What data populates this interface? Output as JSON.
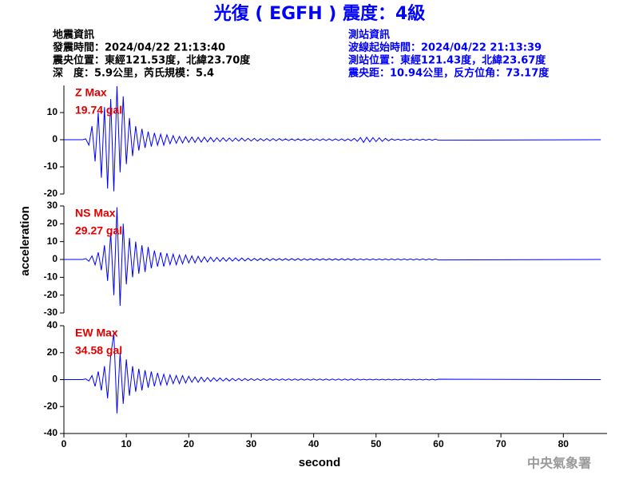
{
  "title": "光復 ( EGFH ) 震度：4級",
  "info_left": [
    "地震資訊",
    "發震時間：2024/04/22 21:13:40",
    "震央位置：東經121.53度，北緯23.70度",
    "深　度：5.9公里，芮氏規模：5.4"
  ],
  "info_right": [
    "測站資訊",
    "波線起始時間：2024/04/22 21:13:39",
    "測站位置：東經121.43度，北緯23.67度",
    "震央距：10.94公里，反方位角：73.17度"
  ],
  "y_label": "acceleration",
  "x_label": "second",
  "footer": "中央氣象署",
  "chart_data": [
    {
      "type": "line",
      "color": "#0000ff",
      "annotations": [
        "Z Max",
        "19.74 gal"
      ],
      "xlim": [
        0,
        87
      ],
      "ylim": [
        -20,
        20
      ],
      "yticks": [
        -20,
        -10,
        0,
        10
      ],
      "x": [
        0,
        3,
        3.5,
        4,
        4.5,
        5,
        5.5,
        6,
        6.5,
        7,
        7.5,
        8,
        8.5,
        9,
        9.5,
        10,
        10.5,
        11,
        11.5,
        12,
        12.5,
        13,
        13.5,
        14,
        14.5,
        15,
        15.5,
        16,
        16.5,
        17,
        17.5,
        18,
        18.5,
        19,
        19.5,
        20,
        20.5,
        21,
        21.5,
        22,
        22.5,
        23,
        23.5,
        24,
        24.5,
        25,
        25.5,
        26,
        26.5,
        27,
        27.5,
        28,
        28.5,
        29,
        29.5,
        30,
        30.5,
        31,
        31.5,
        32,
        32.5,
        33,
        33.5,
        34,
        34.5,
        35,
        35.5,
        36,
        36.5,
        37,
        37.5,
        38,
        38.5,
        39,
        39.5,
        40,
        40.5,
        41,
        41.5,
        42,
        42.5,
        43,
        43.5,
        44,
        44.5,
        45,
        45.5,
        46,
        46.5,
        47,
        47.5,
        48,
        48.5,
        49,
        49.5,
        50,
        50.5,
        51,
        51.5,
        52,
        52.5,
        53,
        53.5,
        54,
        54.5,
        55,
        55.5,
        56,
        56.5,
        57,
        57.5,
        58,
        58.5,
        59,
        59.5,
        60,
        86
      ],
      "values": [
        0,
        0,
        0.3,
        -2,
        5,
        -8,
        10,
        -14,
        12,
        -18,
        15,
        -19,
        19.74,
        -12,
        16,
        -9,
        8,
        -6,
        5,
        -4,
        4,
        -3,
        3,
        -2.5,
        2.5,
        -2,
        2,
        -2,
        1.8,
        -1.5,
        1.5,
        -1.3,
        1.2,
        -1.2,
        1.1,
        -1,
        1,
        -1,
        0.9,
        -0.9,
        0.9,
        -0.8,
        0.8,
        -0.8,
        0.7,
        -0.7,
        0.7,
        -0.6,
        0.6,
        -0.6,
        0.6,
        -0.5,
        0.6,
        -0.5,
        0.5,
        -0.5,
        0.5,
        -0.5,
        0.4,
        -0.4,
        0.4,
        -0.4,
        0.4,
        -0.4,
        0.4,
        -0.3,
        0.3,
        -0.3,
        0.3,
        -0.3,
        0.3,
        -0.3,
        0.3,
        -0.3,
        0.3,
        -0.3,
        0.3,
        -0.3,
        0.3,
        -0.3,
        0.3,
        -0.3,
        0.3,
        -0.3,
        0.3,
        -0.4,
        0.3,
        -0.4,
        0.5,
        -0.6,
        0.8,
        -1,
        0.9,
        -0.8,
        0.8,
        -0.7,
        0.7,
        -0.6,
        0.5,
        -0.4,
        0.3,
        -0.2,
        0.2,
        -0.2,
        0.2,
        -0.2,
        0.2,
        -0.2,
        0.2,
        -0.2,
        0.2,
        -0.2,
        0.2,
        -0.2,
        0.2,
        -0.2,
        0
      ]
    },
    {
      "type": "line",
      "color": "#0000ff",
      "annotations": [
        "NS Max",
        "29.27 gal"
      ],
      "xlim": [
        0,
        87
      ],
      "ylim": [
        -30,
        30
      ],
      "yticks": [
        -30,
        -20,
        -10,
        0,
        10,
        20,
        30
      ],
      "x": [
        0,
        3,
        3.5,
        4,
        4.5,
        5,
        5.5,
        6,
        6.5,
        7,
        7.5,
        8,
        8.5,
        9,
        9.5,
        10,
        10.5,
        11,
        11.5,
        12,
        12.5,
        13,
        13.5,
        14,
        14.5,
        15,
        15.5,
        16,
        16.5,
        17,
        17.5,
        18,
        18.5,
        19,
        19.5,
        20,
        20.5,
        21,
        21.5,
        22,
        22.5,
        23,
        23.5,
        24,
        24.5,
        25,
        25.5,
        26,
        26.5,
        27,
        27.5,
        28,
        28.5,
        29,
        29.5,
        30,
        30.5,
        31,
        31.5,
        32,
        32.5,
        33,
        33.5,
        34,
        34.5,
        35,
        35.5,
        36,
        36.5,
        37,
        37.5,
        38,
        38.5,
        39,
        39.5,
        40,
        40.5,
        41,
        41.5,
        42,
        42.5,
        43,
        43.5,
        44,
        44.5,
        45,
        45.5,
        46,
        46.5,
        47,
        47.5,
        48,
        48.5,
        49,
        49.5,
        50,
        50.5,
        51,
        51.5,
        52,
        52.5,
        53,
        53.5,
        54,
        54.5,
        55,
        55.5,
        56,
        56.5,
        57,
        57.5,
        58,
        58.5,
        59,
        59.5,
        60,
        86
      ],
      "values": [
        0,
        0,
        0.5,
        -1,
        2,
        -3,
        4,
        -6,
        8,
        -12,
        15,
        -20,
        29.27,
        -26,
        20,
        -14,
        12,
        -10,
        10,
        -8,
        8,
        -7,
        7,
        -5,
        5,
        -4,
        4,
        -4,
        3.5,
        -3,
        3,
        -3,
        2.5,
        -2.5,
        2.5,
        -2,
        2,
        -2,
        1.8,
        -1.5,
        1.5,
        -1.4,
        1.3,
        -1.2,
        1.2,
        -1.1,
        1,
        -1,
        1,
        -0.9,
        0.9,
        -0.8,
        0.8,
        -0.8,
        0.7,
        -0.7,
        0.6,
        -0.6,
        0.6,
        -0.6,
        0.6,
        -0.6,
        0.5,
        -0.5,
        0.5,
        -0.5,
        0.5,
        -0.5,
        0.5,
        -0.5,
        0.5,
        -0.5,
        0.4,
        -0.4,
        0.4,
        -0.4,
        0.4,
        -0.4,
        0.4,
        -0.4,
        0.4,
        -0.4,
        0.4,
        -0.4,
        0.4,
        -0.4,
        0.4,
        -0.4,
        0.4,
        -0.4,
        0.3,
        -0.3,
        0.3,
        -0.3,
        0.3,
        -0.3,
        0.3,
        -0.3,
        0.3,
        -0.3,
        0.3,
        -0.3,
        0.3,
        -0.3,
        0.3,
        -0.3,
        0.3,
        -0.3,
        0.3,
        -0.3,
        0.3,
        -0.3,
        0.3,
        -0.3,
        0.3,
        -0.3,
        0
      ]
    },
    {
      "type": "line",
      "color": "#0000ff",
      "annotations": [
        "EW Max",
        "34.58 gal"
      ],
      "xlim": [
        0,
        87
      ],
      "ylim": [
        -40,
        40
      ],
      "yticks": [
        -40,
        -20,
        0,
        20,
        40
      ],
      "xticks": [
        0,
        10,
        20,
        30,
        40,
        50,
        60,
        70,
        80
      ],
      "x": [
        0,
        3,
        3.5,
        4,
        4.5,
        5,
        5.5,
        6,
        6.5,
        7,
        7.5,
        8,
        8.5,
        9,
        9.5,
        10,
        10.5,
        11,
        11.5,
        12,
        12.5,
        13,
        13.5,
        14,
        14.5,
        15,
        15.5,
        16,
        16.5,
        17,
        17.5,
        18,
        18.5,
        19,
        19.5,
        20,
        20.5,
        21,
        21.5,
        22,
        22.5,
        23,
        23.5,
        24,
        24.5,
        25,
        25.5,
        26,
        26.5,
        27,
        27.5,
        28,
        28.5,
        29,
        29.5,
        30,
        30.5,
        31,
        31.5,
        32,
        32.5,
        33,
        33.5,
        34,
        34.5,
        35,
        35.5,
        36,
        36.5,
        37,
        37.5,
        38,
        38.5,
        39,
        39.5,
        40,
        40.5,
        41,
        41.5,
        42,
        42.5,
        43,
        43.5,
        44,
        44.5,
        45,
        45.5,
        46,
        46.5,
        47,
        47.5,
        48,
        48.5,
        49,
        49.5,
        50,
        50.5,
        51,
        51.5,
        52,
        52.5,
        53,
        53.5,
        54,
        54.5,
        55,
        55.5,
        56,
        56.5,
        57,
        57.5,
        58,
        58.5,
        59,
        59.5,
        60,
        86
      ],
      "values": [
        0,
        0,
        0.5,
        -1,
        3,
        -5,
        6,
        -8,
        10,
        -14,
        18,
        34.58,
        -25,
        20,
        -18,
        15,
        -12,
        10,
        -9,
        8,
        -8,
        7,
        -6,
        6,
        -5,
        5,
        -4,
        4,
        -4,
        3.5,
        -3,
        3,
        -3,
        3,
        -2.5,
        2.5,
        -2,
        2,
        -2,
        1.8,
        -1.6,
        1.5,
        -1.4,
        1.3,
        -1.2,
        1.2,
        -1.1,
        1,
        -1,
        0.9,
        -0.9,
        0.8,
        -0.8,
        0.8,
        -0.7,
        0.7,
        -0.6,
        0.6,
        -0.6,
        0.6,
        -0.6,
        0.6,
        -0.5,
        0.5,
        -0.5,
        0.5,
        -0.5,
        0.5,
        -0.5,
        0.5,
        -0.5,
        0.5,
        -0.4,
        0.4,
        -0.4,
        0.4,
        -0.4,
        0.4,
        -0.4,
        0.4,
        -0.4,
        0.4,
        -0.4,
        0.4,
        -0.4,
        0.4,
        -0.4,
        0.4,
        -0.4,
        0.4,
        -0.3,
        0.3,
        -0.3,
        0.3,
        -0.3,
        0.3,
        -0.3,
        0.3,
        -0.3,
        0.3,
        -0.3,
        0.3,
        -0.3,
        0.3,
        -0.3,
        0.3,
        -0.3,
        0.3,
        -0.3,
        0.3,
        -0.3,
        0.3,
        -0.3,
        0.3,
        -0.3,
        0.3,
        0
      ]
    }
  ]
}
